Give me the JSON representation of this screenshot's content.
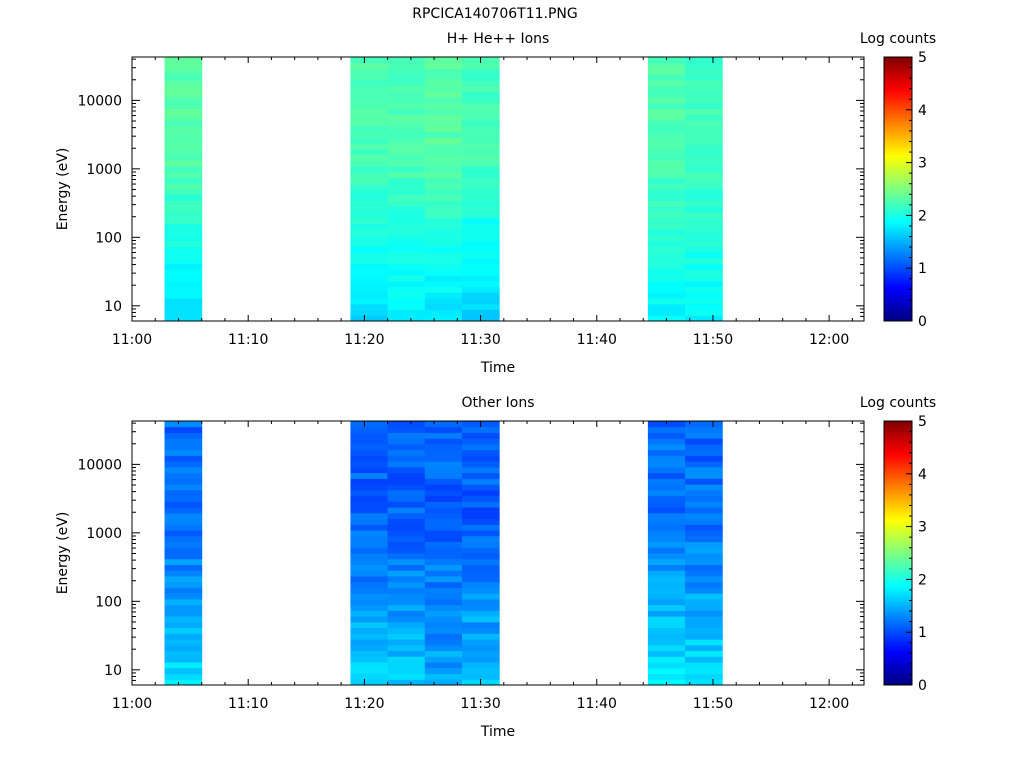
{
  "figure": {
    "title": "RPCICA140706T11.PNG"
  },
  "colormap": {
    "stops": [
      "#00007f",
      "#0000ff",
      "#007fff",
      "#00ffff",
      "#7fff7f",
      "#ffff00",
      "#ff7f00",
      "#ff0000",
      "#7f0000"
    ]
  },
  "chart_data": [
    {
      "type": "heatmap",
      "title": "H+ He++ Ions",
      "xlabel": "Time",
      "ylabel": "Energy (eV)",
      "x_ticks": [
        "11:00",
        "11:10",
        "11:20",
        "11:30",
        "11:40",
        "11:50",
        "12:00"
      ],
      "xlim": [
        "11:00",
        "12:03"
      ],
      "y_scale": "log",
      "y_ticks": [
        10,
        100,
        1000,
        10000
      ],
      "y_tick_labels": [
        "10",
        "100",
        "1000",
        "10000"
      ],
      "ylim": [
        6,
        43000
      ],
      "colorbar": {
        "label": "Log counts",
        "range": [
          0,
          5
        ],
        "ticks": [
          "0",
          "1",
          "2",
          "3",
          "4",
          "5"
        ]
      },
      "time_bins": [
        {
          "start": "11:02.8",
          "end": "11:06.0",
          "low_energy_level": 1.7,
          "high_energy_level": 2.3
        },
        {
          "start": "11:18.8",
          "end": "11:22.0",
          "low_energy_level": 1.7,
          "high_energy_level": 2.25
        },
        {
          "start": "11:22.0",
          "end": "11:25.2",
          "low_energy_level": 1.8,
          "high_energy_level": 2.25
        },
        {
          "start": "11:25.2",
          "end": "11:28.4",
          "low_energy_level": 1.75,
          "high_energy_level": 2.3
        },
        {
          "start": "11:28.4",
          "end": "11:31.6",
          "low_energy_level": 1.65,
          "high_energy_level": 2.2
        },
        {
          "start": "11:44.4",
          "end": "11:47.6",
          "low_energy_level": 1.85,
          "high_energy_level": 2.25
        },
        {
          "start": "11:47.6",
          "end": "11:50.8",
          "low_energy_level": 1.85,
          "high_energy_level": 2.2
        }
      ]
    },
    {
      "type": "heatmap",
      "title": "Other Ions",
      "xlabel": "Time",
      "ylabel": "Energy (eV)",
      "x_ticks": [
        "11:00",
        "11:10",
        "11:20",
        "11:30",
        "11:40",
        "11:50",
        "12:00"
      ],
      "xlim": [
        "11:00",
        "12:03"
      ],
      "y_scale": "log",
      "y_ticks": [
        10,
        100,
        1000,
        10000
      ],
      "y_tick_labels": [
        "10",
        "100",
        "1000",
        "10000"
      ],
      "ylim": [
        6,
        43000
      ],
      "colorbar": {
        "label": "Log counts",
        "range": [
          0,
          5
        ],
        "ticks": [
          "0",
          "1",
          "2",
          "3",
          "4",
          "5"
        ]
      },
      "time_bins": [
        {
          "start": "11:02.8",
          "end": "11:06.0",
          "low_energy_level": 1.75,
          "high_energy_level": 1.15
        },
        {
          "start": "11:18.8",
          "end": "11:22.0",
          "low_energy_level": 1.65,
          "high_energy_level": 1.1
        },
        {
          "start": "11:22.0",
          "end": "11:25.2",
          "low_energy_level": 1.6,
          "high_energy_level": 1.1
        },
        {
          "start": "11:25.2",
          "end": "11:28.4",
          "low_energy_level": 1.45,
          "high_energy_level": 1.1
        },
        {
          "start": "11:28.4",
          "end": "11:31.6",
          "low_energy_level": 1.6,
          "high_energy_level": 1.1
        },
        {
          "start": "11:44.4",
          "end": "11:47.6",
          "low_energy_level": 1.8,
          "high_energy_level": 1.15
        },
        {
          "start": "11:47.6",
          "end": "11:50.8",
          "low_energy_level": 1.75,
          "high_energy_level": 1.15
        }
      ]
    }
  ]
}
